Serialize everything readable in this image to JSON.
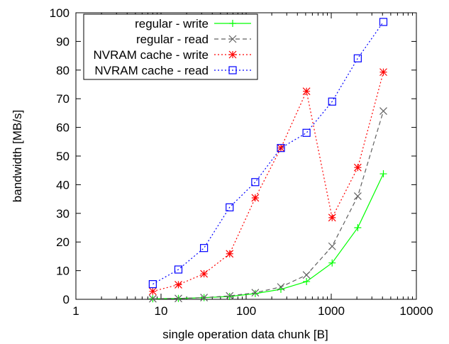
{
  "chart_data": {
    "type": "line",
    "title": "",
    "xlabel": "single operation data chunk [B]",
    "ylabel": "bandwidth [MB/s]",
    "xscale": "log",
    "xlim": [
      1,
      10000
    ],
    "ylim": [
      0,
      100
    ],
    "xticks": [
      1,
      10,
      100,
      1000,
      10000
    ],
    "yticks": [
      0,
      10,
      20,
      30,
      40,
      50,
      60,
      70,
      80,
      90,
      100
    ],
    "grid": false,
    "legend_position": "top-left",
    "x": [
      8,
      16,
      32,
      64,
      128,
      256,
      512,
      1024,
      2048,
      4096
    ],
    "series": [
      {
        "name": "regular - write",
        "color": "#00ff00",
        "dash": "solid",
        "marker": "plus",
        "values": [
          0.2,
          0.3,
          0.6,
          1.0,
          2.0,
          3.5,
          6.2,
          12.7,
          25.0,
          43.8
        ]
      },
      {
        "name": "regular - read",
        "color": "#606060",
        "dash": "dashed",
        "marker": "cross",
        "values": [
          0.2,
          0.3,
          0.6,
          1.2,
          2.3,
          4.3,
          8.5,
          18.5,
          36.0,
          65.7
        ]
      },
      {
        "name": "NVRAM cache - write",
        "color": "#ff0000",
        "dash": "dotted",
        "marker": "star",
        "values": [
          2.8,
          5.1,
          8.9,
          15.9,
          35.4,
          52.8,
          72.6,
          28.5,
          46.0,
          79.3
        ]
      },
      {
        "name": "NVRAM cache - read",
        "color": "#0000ff",
        "dash": "dotted",
        "marker": "square",
        "values": [
          5.3,
          10.4,
          17.9,
          32.1,
          40.9,
          52.8,
          58.1,
          69.0,
          84.1,
          96.8
        ]
      }
    ]
  }
}
